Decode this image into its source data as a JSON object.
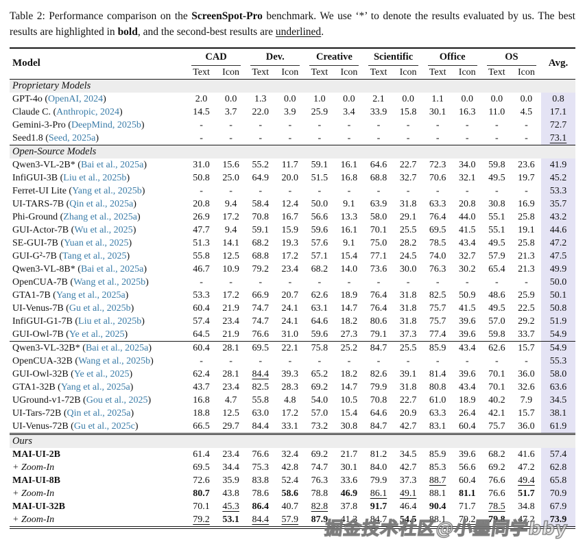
{
  "caption": {
    "prefix": "Table 2: Performance comparison on the ",
    "benchmark": "ScreenSpot-Pro",
    "mid": " benchmark. We use ‘*’ to denote the results evaluated by us. The best results are highlighted in ",
    "bold_word": "bold",
    "mid2": ", and the second-best results are ",
    "underline_word": "underlined",
    "suffix": "."
  },
  "watermark": {
    "text": "掘金技术社区@小墨同学bby"
  },
  "colors": {
    "citation": "#3a7ca8",
    "avg_bg": "#e4e3f4",
    "section_bg": "#ededed"
  },
  "table": {
    "col_model": "Model",
    "col_avg": "Avg.",
    "groups": [
      "CAD",
      "Dev.",
      "Creative",
      "Scientific",
      "Office",
      "OS"
    ],
    "subheaders": [
      "Text",
      "Icon"
    ],
    "sections": [
      {
        "label": "Proprietary Models",
        "rule": "none",
        "rows": [
          {
            "name": "GPT-4o",
            "cite": "OpenAI, 2024",
            "c": [
              "2.0",
              "0.0",
              "1.3",
              "0.0",
              "1.0",
              "0.0",
              "2.1",
              "0.0",
              "1.1",
              "0.0",
              "0.0",
              "0.0",
              "0.8"
            ]
          },
          {
            "name": "Claude C.",
            "cite": "Anthropic, 2024",
            "c": [
              "14.5",
              "3.7",
              "22.0",
              "3.9",
              "25.9",
              "3.4",
              "33.9",
              "15.8",
              "30.1",
              "16.3",
              "11.0",
              "4.5",
              "17.1"
            ]
          },
          {
            "name": "Gemini-3-Pro",
            "cite": "DeepMind, 2025b",
            "c": [
              "-",
              "-",
              "-",
              "-",
              "-",
              "-",
              "-",
              "-",
              "-",
              "-",
              "-",
              "-",
              "72.7"
            ]
          },
          {
            "name": "Seed1.8",
            "cite": "Seed, 2025a",
            "c": [
              "-",
              "-",
              "-",
              "-",
              "-",
              "-",
              "-",
              "-",
              "-",
              "-",
              "-",
              "-",
              "73.1"
            ],
            "m": {
              "12": "u"
            }
          }
        ]
      },
      {
        "label": "Open-Source Models",
        "rule": "single",
        "rows": [
          {
            "name": "Qwen3-VL-2B*",
            "cite": "Bai et al., 2025a",
            "c": [
              "31.0",
              "15.6",
              "55.2",
              "11.7",
              "59.1",
              "16.1",
              "64.6",
              "22.7",
              "72.3",
              "34.0",
              "59.8",
              "23.6",
              "41.9"
            ]
          },
          {
            "name": "InfiGUI-3B",
            "cite": "Liu et al., 2025b",
            "c": [
              "50.8",
              "25.0",
              "64.9",
              "20.0",
              "51.5",
              "16.8",
              "68.8",
              "32.7",
              "70.6",
              "32.1",
              "49.5",
              "19.7",
              "45.2"
            ]
          },
          {
            "name": "Ferret-UI Lite",
            "cite": "Yang et al., 2025b",
            "c": [
              "-",
              "-",
              "-",
              "-",
              "-",
              "-",
              "-",
              "-",
              "-",
              "-",
              "-",
              "-",
              "53.3"
            ]
          },
          {
            "name": "UI-TARS-7B",
            "cite": "Qin et al., 2025a",
            "c": [
              "20.8",
              "9.4",
              "58.4",
              "12.4",
              "50.0",
              "9.1",
              "63.9",
              "31.8",
              "63.3",
              "20.8",
              "30.8",
              "16.9",
              "35.7"
            ]
          },
          {
            "name": "Phi-Ground",
            "cite": "Zhang et al., 2025a",
            "c": [
              "26.9",
              "17.2",
              "70.8",
              "16.7",
              "56.6",
              "13.3",
              "58.0",
              "29.1",
              "76.4",
              "44.0",
              "55.1",
              "25.8",
              "43.2"
            ]
          },
          {
            "name": "GUI-Actor-7B",
            "cite": "Wu et al., 2025",
            "c": [
              "47.7",
              "9.4",
              "59.1",
              "15.9",
              "59.6",
              "16.1",
              "70.1",
              "25.5",
              "69.5",
              "41.5",
              "55.1",
              "19.1",
              "44.6"
            ]
          },
          {
            "name": "SE-GUI-7B",
            "cite": "Yuan et al., 2025",
            "c": [
              "51.3",
              "14.1",
              "68.2",
              "19.3",
              "57.6",
              "9.1",
              "75.0",
              "28.2",
              "78.5",
              "43.4",
              "49.5",
              "25.8",
              "47.2"
            ]
          },
          {
            "name": "GUI-G²-7B",
            "cite": "Tang et al., 2025",
            "c": [
              "55.8",
              "12.5",
              "68.8",
              "17.2",
              "57.1",
              "15.4",
              "77.1",
              "24.5",
              "74.0",
              "32.7",
              "57.9",
              "21.3",
              "47.5"
            ]
          },
          {
            "name": "Qwen3-VL-8B*",
            "cite": "Bai et al., 2025a",
            "c": [
              "46.7",
              "10.9",
              "79.2",
              "23.4",
              "68.2",
              "14.0",
              "73.6",
              "30.0",
              "76.3",
              "30.2",
              "65.4",
              "21.3",
              "49.9"
            ]
          },
          {
            "name": "OpenCUA-7B",
            "cite": "Wang et al., 2025b",
            "c": [
              "-",
              "-",
              "-",
              "-",
              "-",
              "-",
              "-",
              "-",
              "-",
              "-",
              "-",
              "-",
              "50.0"
            ]
          },
          {
            "name": "GTA1-7B",
            "cite": "Yang et al., 2025a",
            "c": [
              "53.3",
              "17.2",
              "66.9",
              "20.7",
              "62.6",
              "18.9",
              "76.4",
              "31.8",
              "82.5",
              "50.9",
              "48.6",
              "25.9",
              "50.1"
            ]
          },
          {
            "name": "UI-Venus-7B",
            "cite": "Gu et al., 2025b",
            "c": [
              "60.4",
              "21.9",
              "74.7",
              "24.1",
              "63.1",
              "14.7",
              "76.4",
              "31.8",
              "75.7",
              "41.5",
              "49.5",
              "22.5",
              "50.8"
            ]
          },
          {
            "name": "InfiGUI-G1-7B",
            "cite": "Liu et al., 2025b",
            "c": [
              "57.4",
              "23.4",
              "74.7",
              "24.1",
              "64.6",
              "18.2",
              "80.6",
              "31.8",
              "75.7",
              "39.6",
              "57.0",
              "29.2",
              "51.9"
            ]
          },
          {
            "name": "GUI-Owl-7B",
            "cite": "Ye et al., 2025",
            "c": [
              "64.5",
              "21.9",
              "76.6",
              "31.0",
              "59.6",
              "27.3",
              "79.1",
              "37.3",
              "77.4",
              "39.6",
              "59.8",
              "33.7",
              "54.9"
            ]
          }
        ]
      },
      {
        "label": null,
        "rule": "single",
        "rows": [
          {
            "name": "Qwen3-VL-32B*",
            "cite": "Bai et al., 2025a",
            "c": [
              "60.4",
              "28.1",
              "69.5",
              "22.1",
              "75.8",
              "25.2",
              "84.7",
              "25.5",
              "85.9",
              "43.4",
              "62.6",
              "15.7",
              "54.9"
            ]
          },
          {
            "name": "OpenCUA-32B",
            "cite": "Wang et al., 2025b",
            "c": [
              "-",
              "-",
              "-",
              "-",
              "-",
              "-",
              "-",
              "-",
              "-",
              "-",
              "-",
              "-",
              "55.3"
            ]
          },
          {
            "name": "GUI-Owl-32B",
            "cite": "Ye et al., 2025",
            "c": [
              "62.4",
              "28.1",
              "84.4",
              "39.3",
              "65.2",
              "18.2",
              "82.6",
              "39.1",
              "81.4",
              "39.6",
              "70.1",
              "36.0",
              "58.0"
            ],
            "m": {
              "2": "u"
            }
          },
          {
            "name": "GTA1-32B",
            "cite": "Yang et al., 2025a",
            "c": [
              "43.7",
              "23.4",
              "82.5",
              "28.3",
              "69.2",
              "14.7",
              "79.9",
              "31.8",
              "80.8",
              "43.4",
              "70.1",
              "32.6",
              "63.6"
            ]
          },
          {
            "name": "UGround-v1-72B",
            "cite": "Gou et al., 2025",
            "c": [
              "16.8",
              "4.7",
              "55.8",
              "4.8",
              "54.0",
              "10.5",
              "70.8",
              "22.7",
              "61.0",
              "18.9",
              "40.2",
              "7.9",
              "34.5"
            ]
          },
          {
            "name": "UI-Tars-72B",
            "cite": "Qin et al., 2025a",
            "c": [
              "18.8",
              "12.5",
              "63.0",
              "17.2",
              "57.0",
              "15.4",
              "64.6",
              "20.9",
              "63.3",
              "26.4",
              "42.1",
              "15.7",
              "38.1"
            ]
          },
          {
            "name": "UI-Venus-72B",
            "cite": "Gu et al., 2025c",
            "c": [
              "66.5",
              "29.7",
              "84.4",
              "33.1",
              "73.2",
              "30.8",
              "84.7",
              "42.7",
              "83.1",
              "60.4",
              "75.7",
              "36.0",
              "61.9"
            ]
          }
        ]
      },
      {
        "label": "Ours",
        "rule": "double",
        "rows": [
          {
            "name": "MAI-UI-2B",
            "nb": true,
            "cite": "",
            "c": [
              "61.4",
              "23.4",
              "76.6",
              "32.4",
              "69.2",
              "21.7",
              "81.2",
              "34.5",
              "85.9",
              "39.6",
              "68.2",
              "41.6",
              "57.4"
            ]
          },
          {
            "name": "+ Zoom-In",
            "ni": true,
            "cite": "",
            "c": [
              "69.5",
              "34.4",
              "75.3",
              "42.8",
              "74.7",
              "30.1",
              "84.0",
              "42.7",
              "85.3",
              "56.6",
              "69.2",
              "47.2",
              "62.8"
            ]
          },
          {
            "name": "MAI-UI-8B",
            "nb": true,
            "cite": "",
            "c": [
              "72.6",
              "35.9",
              "83.8",
              "52.4",
              "76.3",
              "33.6",
              "79.9",
              "37.3",
              "88.7",
              "60.4",
              "76.6",
              "49.4",
              "65.8"
            ],
            "m": {
              "8": "u",
              "11": "u"
            }
          },
          {
            "name": "+ Zoom-In",
            "ni": true,
            "cite": "",
            "c": [
              "80.7",
              "43.8",
              "78.6",
              "58.6",
              "78.8",
              "46.9",
              "86.1",
              "49.1",
              "88.1",
              "81.1",
              "76.6",
              "51.7",
              "70.9"
            ],
            "m": {
              "0": "b",
              "3": "b",
              "5": "b",
              "6": "u",
              "7": "u",
              "9": "b",
              "11": "b"
            }
          },
          {
            "name": "MAI-UI-32B",
            "nb": true,
            "cite": "",
            "c": [
              "70.1",
              "45.3",
              "86.4",
              "40.7",
              "82.8",
              "37.8",
              "91.7",
              "46.4",
              "90.4",
              "71.7",
              "78.5",
              "34.8",
              "67.9"
            ],
            "m": {
              "1": "u",
              "2": "b",
              "4": "u",
              "6": "b",
              "8": "b",
              "10": "u"
            }
          },
          {
            "name": "+ Zoom-In",
            "ni": true,
            "cite": "",
            "c": [
              "79.2",
              "53.1",
              "84.4",
              "57.9",
              "87.9",
              "41.3",
              "84.7",
              "54.5",
              "88.1",
              "79.2",
              "79.8",
              "47.2",
              "73.9"
            ],
            "m": {
              "0": "u",
              "1": "b",
              "2": "u",
              "3": "u",
              "4": "b",
              "5": "u",
              "7": "b",
              "9": "u",
              "10": "b",
              "12": "b"
            }
          }
        ]
      }
    ]
  }
}
